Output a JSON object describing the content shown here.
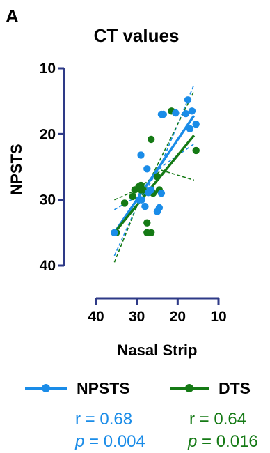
{
  "panel_label": "A",
  "colors": {
    "axis": "#2e3a87",
    "npsts": "#1a8ce8",
    "dts": "#157a15"
  },
  "chart_data": {
    "type": "scatter",
    "title": "CT values",
    "xlabel": "Nasal Strip",
    "ylabel": "NPSTS",
    "xlim": [
      40,
      10
    ],
    "ylim": [
      40,
      10
    ],
    "x_reversed": true,
    "y_reversed": true,
    "xticks": [
      "40",
      "30",
      "20",
      "10"
    ],
    "yticks": [
      "10",
      "20",
      "30",
      "40"
    ],
    "grid": false,
    "legend_position": "bottom",
    "series": [
      {
        "name": "NPSTS",
        "color": "#1a8ce8",
        "points": [
          [
            35.5,
            35
          ],
          [
            29.5,
            30
          ],
          [
            28.8,
            30
          ],
          [
            28,
            31
          ],
          [
            27.2,
            28.9
          ],
          [
            26.5,
            28.5
          ],
          [
            25,
            31.8
          ],
          [
            24.5,
            31.2
          ],
          [
            24,
            29
          ],
          [
            27.5,
            25.3
          ],
          [
            29,
            23.2
          ],
          [
            23.5,
            17
          ],
          [
            24,
            17
          ],
          [
            20.5,
            16.8
          ],
          [
            18,
            16.9
          ],
          [
            17.5,
            14.8
          ],
          [
            16.5,
            16.5
          ],
          [
            15.5,
            18.5
          ],
          [
            17,
            19.2
          ]
        ],
        "fit": {
          "x1": 35.5,
          "y1": 35,
          "x2": 16,
          "y2": 17.2
        },
        "r": "r  = 0.68",
        "p_symbol": "p",
        "p_value": " = 0.004"
      },
      {
        "name": "DTS",
        "color": "#157a15",
        "points": [
          [
            35,
            35
          ],
          [
            35.5,
            35
          ],
          [
            33,
            30.5
          ],
          [
            31,
            29.5
          ],
          [
            30.5,
            28.5
          ],
          [
            29.5,
            28
          ],
          [
            29,
            28.5
          ],
          [
            29,
            27.8
          ],
          [
            28.5,
            28.5
          ],
          [
            27.5,
            35
          ],
          [
            26.5,
            35
          ],
          [
            27.5,
            33.5
          ],
          [
            26.5,
            20.8
          ],
          [
            26,
            29
          ],
          [
            24.5,
            28.5
          ],
          [
            25,
            26.5
          ],
          [
            21.5,
            16.5
          ],
          [
            15.5,
            22.5
          ]
        ],
        "fit": {
          "x1": 35.5,
          "y1": 35,
          "x2": 16,
          "y2": 20.2
        },
        "r": "r  = 0.64",
        "p_symbol": "p",
        "p_value": " = 0.016"
      }
    ]
  }
}
